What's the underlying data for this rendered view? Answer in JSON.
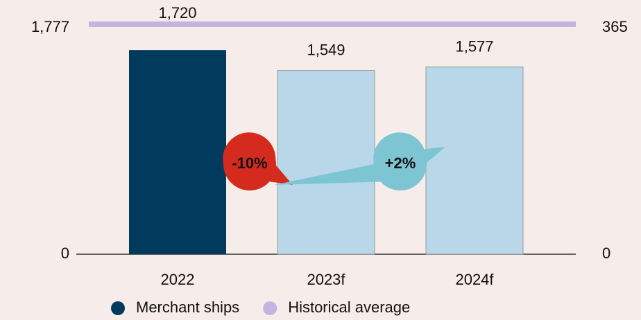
{
  "chart_data": {
    "type": "bar",
    "categories": [
      "2022",
      "2023f",
      "2024f"
    ],
    "series": [
      {
        "name": "Merchant ships",
        "color": "#003a5d",
        "colors": [
          "#003a5d",
          "#b8d8ea",
          "#b8d8ea"
        ],
        "values": [
          1720,
          1549,
          1577
        ],
        "value_labels": [
          "1,720",
          "1,549",
          "1,577"
        ]
      },
      {
        "name": "Historical average",
        "color": "#c5b3e0",
        "values": [
          365,
          365,
          365
        ],
        "axis": "y2"
      }
    ],
    "ylim": [
      0,
      1937
    ],
    "yticks": [
      0,
      {
        "value": 1777,
        "label": "1,777"
      }
    ],
    "y2lim": [
      0,
      365
    ],
    "y2ticks": [
      0,
      365
    ],
    "annotations": [
      {
        "text": "-10%",
        "color": "#d52b1e"
      },
      {
        "text": "+2%",
        "color": "#7ec5d3"
      }
    ]
  }
}
